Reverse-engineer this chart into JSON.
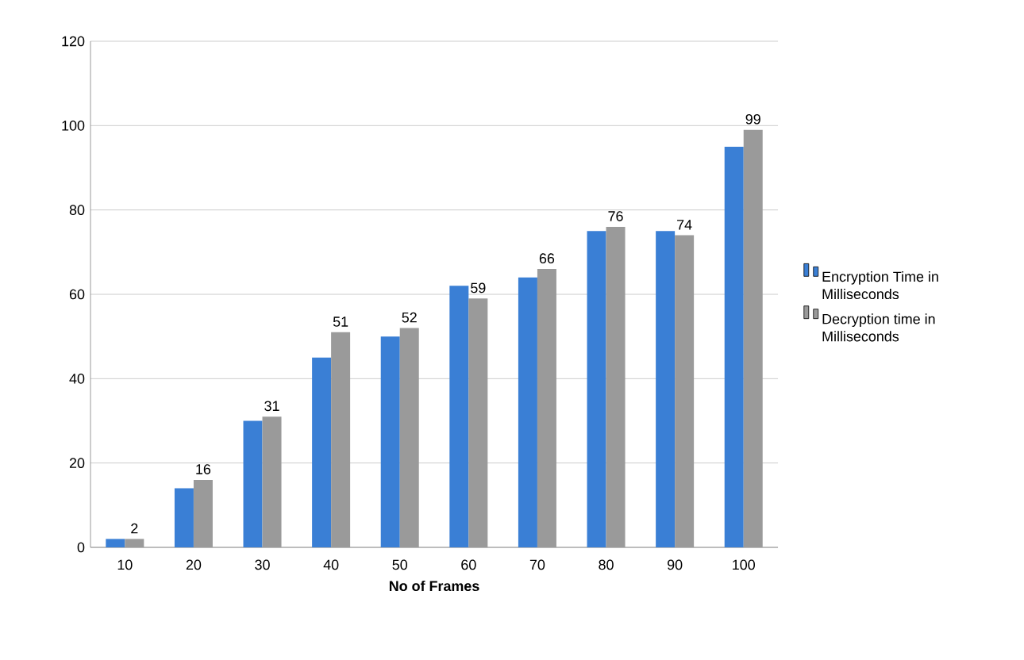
{
  "chart_data": {
    "type": "bar",
    "xlabel": "No of Frames",
    "categories": [
      "10",
      "20",
      "30",
      "40",
      "50",
      "60",
      "70",
      "80",
      "90",
      "100"
    ],
    "series": [
      {
        "name": "Encryption Time in Milliseconds",
        "color": "#3a7fd5",
        "values": [
          2,
          14,
          30,
          45,
          50,
          62,
          64,
          75,
          75,
          95
        ]
      },
      {
        "name": "Decryption time in Milliseconds",
        "color": "#9a9a9a",
        "values": [
          2,
          16,
          31,
          51,
          52,
          59,
          66,
          76,
          74,
          99
        ],
        "value_labels": [
          "2",
          "16",
          "31",
          "51",
          "52",
          "59",
          "66",
          "76",
          "74",
          "99"
        ]
      }
    ],
    "ylim": [
      0,
      120
    ],
    "yticks": [
      0,
      20,
      40,
      60,
      80,
      100,
      120
    ],
    "grid": "y",
    "legend": "right"
  }
}
